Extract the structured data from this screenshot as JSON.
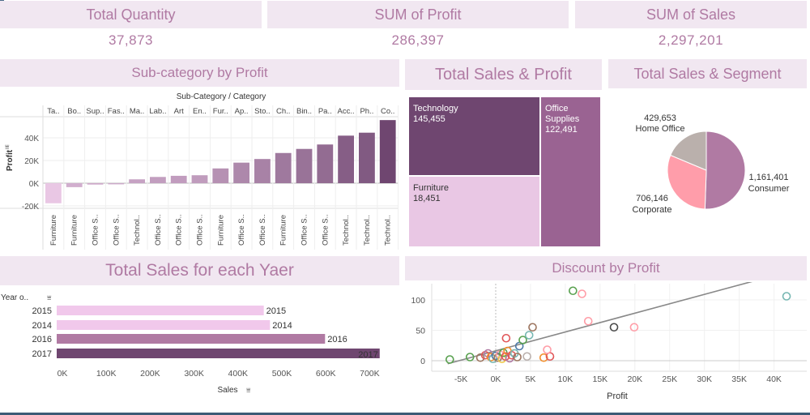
{
  "kpis": [
    {
      "title": "Total Quantity",
      "value": "37,873"
    },
    {
      "title": "SUM of Profit",
      "value": "286,397"
    },
    {
      "title": "SUM of Sales",
      "value": "2,297,201"
    }
  ],
  "palette": {
    "title_bg": "#f1e7f1",
    "title_text": "#b07aa3",
    "dark": "#6f4670",
    "mid": "#9a6392",
    "light": "#e9c7e4"
  },
  "chart_data": [
    {
      "type": "bar",
      "title": "Sub-category by Profit",
      "header": "Sub-Category / Category",
      "ylabel": "Profit",
      "ylim": [
        -25000,
        60000
      ],
      "yticks": [
        "40K",
        "20K",
        "0K",
        "-20K"
      ],
      "categories": [
        "Ta..",
        "Bo..",
        "Sup..",
        "Fas..",
        "Ma..",
        "Lab..",
        "Art",
        "En..",
        "Fur..",
        "Ap..",
        "Sto..",
        "Ch..",
        "Bin..",
        "Pa..",
        "Acc..",
        "Ph..",
        "Co.."
      ],
      "groups": [
        "Furniture",
        "Furniture",
        "Office S..",
        "Office S..",
        "Technol..",
        "Office S..",
        "Office S..",
        "Office S..",
        "Furniture",
        "Office S..",
        "Office S..",
        "Furniture",
        "Office S..",
        "Office S..",
        "Technol..",
        "Technol..",
        "Technol.."
      ],
      "values": [
        -17700,
        -3500,
        -1200,
        -1000,
        3400,
        5500,
        6500,
        7000,
        13000,
        18100,
        21300,
        26600,
        30200,
        34100,
        41900,
        44500,
        55600
      ]
    },
    {
      "type": "treemap",
      "title": "Total Sales & Profit",
      "items": [
        {
          "label": "Technology",
          "value": "145,455"
        },
        {
          "label": "Office Supplies",
          "value": "122,491"
        },
        {
          "label": "Furniture",
          "value": "18,451"
        }
      ]
    },
    {
      "type": "pie",
      "title": "Total Sales & Segment",
      "slices": [
        {
          "label": "Consumer",
          "value": 1161401,
          "display": "1,161,401",
          "color": "#b07aa3"
        },
        {
          "label": "Corporate",
          "value": 706146,
          "display": "706,146",
          "color": "#ff9daa"
        },
        {
          "label": "Home Office",
          "value": 429653,
          "display": "429,653",
          "color": "#bab0ac"
        }
      ]
    },
    {
      "type": "bar",
      "title": "Total Sales for each Yaer",
      "orientation": "horizontal",
      "ylabel": "Year o..",
      "xlabel": "Sales",
      "categories": [
        "2015",
        "2014",
        "2016",
        "2017"
      ],
      "values": [
        470000,
        484000,
        609000,
        733000
      ],
      "xticks": [
        "0K",
        "100K",
        "200K",
        "300K",
        "400K",
        "500K",
        "600K",
        "700K"
      ],
      "xlim": [
        0,
        750000
      ]
    },
    {
      "type": "scatter",
      "title": "Discount by Profit",
      "xlabel": "Profit",
      "xticks": [
        "-5K",
        "0K",
        "5K",
        "10K",
        "15K",
        "20K",
        "25K",
        "30K",
        "35K",
        "40K"
      ],
      "yticks": [
        "100",
        "50",
        "0"
      ],
      "xlim": [
        -6900,
        45000
      ],
      "ylim": [
        -10,
        115
      ],
      "trend": [
        [
          -6900,
          -5
        ],
        [
          40000,
          140
        ]
      ],
      "points": [
        {
          "x": -6600,
          "y": 2,
          "color": "#59a14f"
        },
        {
          "x": -3700,
          "y": 6,
          "color": "#59a14f"
        },
        {
          "x": -2200,
          "y": 5,
          "color": "#9c755f"
        },
        {
          "x": -1500,
          "y": 9,
          "color": "#e15759"
        },
        {
          "x": -1100,
          "y": 12,
          "color": "#b07aa3"
        },
        {
          "x": -700,
          "y": 6,
          "color": "#f28e2b"
        },
        {
          "x": -400,
          "y": 3,
          "color": "#76b7b2"
        },
        {
          "x": 0,
          "y": 8,
          "color": "#4e79a7"
        },
        {
          "x": 300,
          "y": 5,
          "color": "#9c755f"
        },
        {
          "x": 600,
          "y": 10,
          "color": "#ff9da7"
        },
        {
          "x": 900,
          "y": 3,
          "color": "#edc948"
        },
        {
          "x": 1100,
          "y": 13,
          "color": "#59a14f"
        },
        {
          "x": 1400,
          "y": 7,
          "color": "#e15759"
        },
        {
          "x": 1700,
          "y": 16,
          "color": "#f28e2b"
        },
        {
          "x": 2000,
          "y": 4,
          "color": "#b07aa3"
        },
        {
          "x": 2300,
          "y": 9,
          "color": "#e15759"
        },
        {
          "x": 2700,
          "y": 12,
          "color": "#76b7b2"
        },
        {
          "x": 3100,
          "y": 6,
          "color": "#9c755f"
        },
        {
          "x": 1500,
          "y": 37,
          "color": "#e15759"
        },
        {
          "x": 3400,
          "y": 24,
          "color": "#4e79a7"
        },
        {
          "x": 3900,
          "y": 34,
          "color": "#59a14f"
        },
        {
          "x": 4800,
          "y": 42,
          "color": "#76b7b2"
        },
        {
          "x": 5300,
          "y": 55,
          "color": "#9c755f"
        },
        {
          "x": 4500,
          "y": 7,
          "color": "#bab0ac"
        },
        {
          "x": 6900,
          "y": 5,
          "color": "#f28e2b"
        },
        {
          "x": 7800,
          "y": 7,
          "color": "#e15759"
        },
        {
          "x": 7400,
          "y": 18,
          "color": "#ff9da7"
        },
        {
          "x": 11100,
          "y": 115,
          "color": "#59a14f"
        },
        {
          "x": 12400,
          "y": 110,
          "color": "#ff9da7"
        },
        {
          "x": 13300,
          "y": 65,
          "color": "#ff9da7"
        },
        {
          "x": 17000,
          "y": 55,
          "color": "#4a4a4a"
        },
        {
          "x": 19900,
          "y": 55,
          "color": "#ff9da7"
        },
        {
          "x": 41800,
          "y": 106,
          "color": "#76b7b2"
        }
      ]
    }
  ]
}
